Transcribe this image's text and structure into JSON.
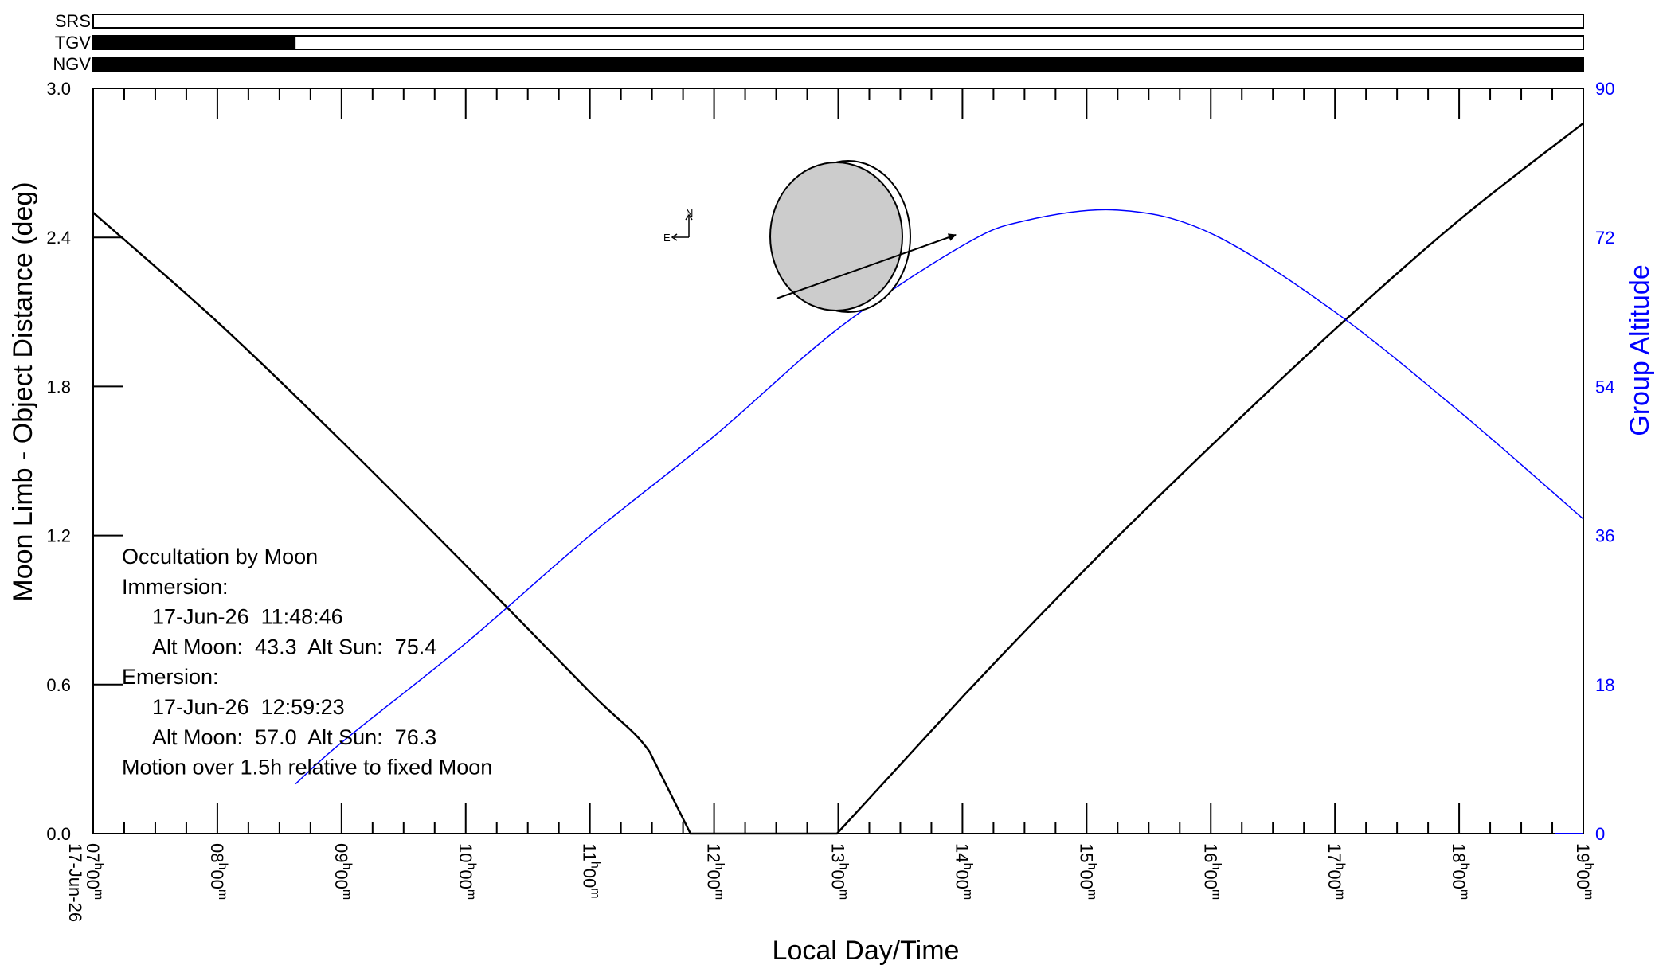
{
  "chart_data": {
    "type": "line",
    "xlabel": "Local Day/Time",
    "ylabel_left": "Moon Limb - Object Distance (deg)",
    "ylabel_right": "Group Altitude",
    "date_label": "17-Jun-26",
    "x_range_hours": [
      7,
      19
    ],
    "x_ticks": [
      {
        "hour": 7,
        "h": "07",
        "m": "00"
      },
      {
        "hour": 8,
        "h": "08",
        "m": "00"
      },
      {
        "hour": 9,
        "h": "09",
        "m": "00"
      },
      {
        "hour": 10,
        "h": "10",
        "m": "00"
      },
      {
        "hour": 11,
        "h": "11",
        "m": "00"
      },
      {
        "hour": 12,
        "h": "12",
        "m": "00"
      },
      {
        "hour": 13,
        "h": "13",
        "m": "00"
      },
      {
        "hour": 14,
        "h": "14",
        "m": "00"
      },
      {
        "hour": 15,
        "h": "15",
        "m": "00"
      },
      {
        "hour": 16,
        "h": "16",
        "m": "00"
      },
      {
        "hour": 17,
        "h": "17",
        "m": "00"
      },
      {
        "hour": 18,
        "h": "18",
        "m": "00"
      },
      {
        "hour": 19,
        "h": "19",
        "m": "00"
      }
    ],
    "y_left_range": [
      0,
      3.0
    ],
    "y_left_ticks": [
      "0.0",
      "0.6",
      "1.2",
      "1.8",
      "2.4",
      "3.0"
    ],
    "y_right_range": [
      0,
      90
    ],
    "y_right_ticks": [
      "0",
      "18",
      "36",
      "54",
      "72",
      "90"
    ],
    "series": [
      {
        "axis": "left",
        "color": "#000000",
        "points": [
          [
            7.0,
            2.5
          ],
          [
            8.0,
            2.06
          ],
          [
            9.0,
            1.58
          ],
          [
            10.0,
            1.08
          ],
          [
            11.0,
            0.57
          ],
          [
            11.48,
            0.33
          ],
          [
            11.81,
            0.0
          ],
          [
            12.99,
            0.0
          ],
          [
            14.0,
            0.55
          ],
          [
            15.0,
            1.07
          ],
          [
            16.0,
            1.56
          ],
          [
            17.0,
            2.03
          ],
          [
            18.0,
            2.47
          ],
          [
            19.0,
            2.86
          ]
        ]
      },
      {
        "axis": "right",
        "color": "#0000ff",
        "points": [
          [
            8.63,
            6
          ],
          [
            9.0,
            11
          ],
          [
            10.0,
            23
          ],
          [
            11.0,
            36
          ],
          [
            12.0,
            48
          ],
          [
            13.0,
            61
          ],
          [
            14.0,
            71
          ],
          [
            14.5,
            74
          ],
          [
            15.25,
            75.3
          ],
          [
            16.0,
            72.5
          ],
          [
            17.0,
            63
          ],
          [
            18.0,
            51
          ],
          [
            19.0,
            38
          ]
        ]
      }
    ],
    "visibility_bars": [
      {
        "label": "SRS",
        "fill_from": null,
        "fill_to": null
      },
      {
        "label": "TGV",
        "fill_from": 7.0,
        "fill_to": 8.63
      },
      {
        "label": "NGV",
        "fill_from": 7.0,
        "fill_to": 19.0
      }
    ],
    "compass": {
      "e": "E",
      "n": "N"
    },
    "moon_diagram": {
      "disk_color": "#cccccc"
    },
    "info_lines": [
      "Occultation by Moon",
      "Immersion:",
      "17-Jun-26  11:48:46",
      "Alt Moon:  43.3  Alt Sun:  75.4",
      "Emersion:",
      "17-Jun-26  12:59:23",
      "Alt Moon:  57.0  Alt Sun:  76.3",
      "Motion over 1.5h relative to fixed Moon"
    ],
    "info_indent": [
      false,
      false,
      true,
      true,
      false,
      true,
      true,
      false
    ]
  }
}
